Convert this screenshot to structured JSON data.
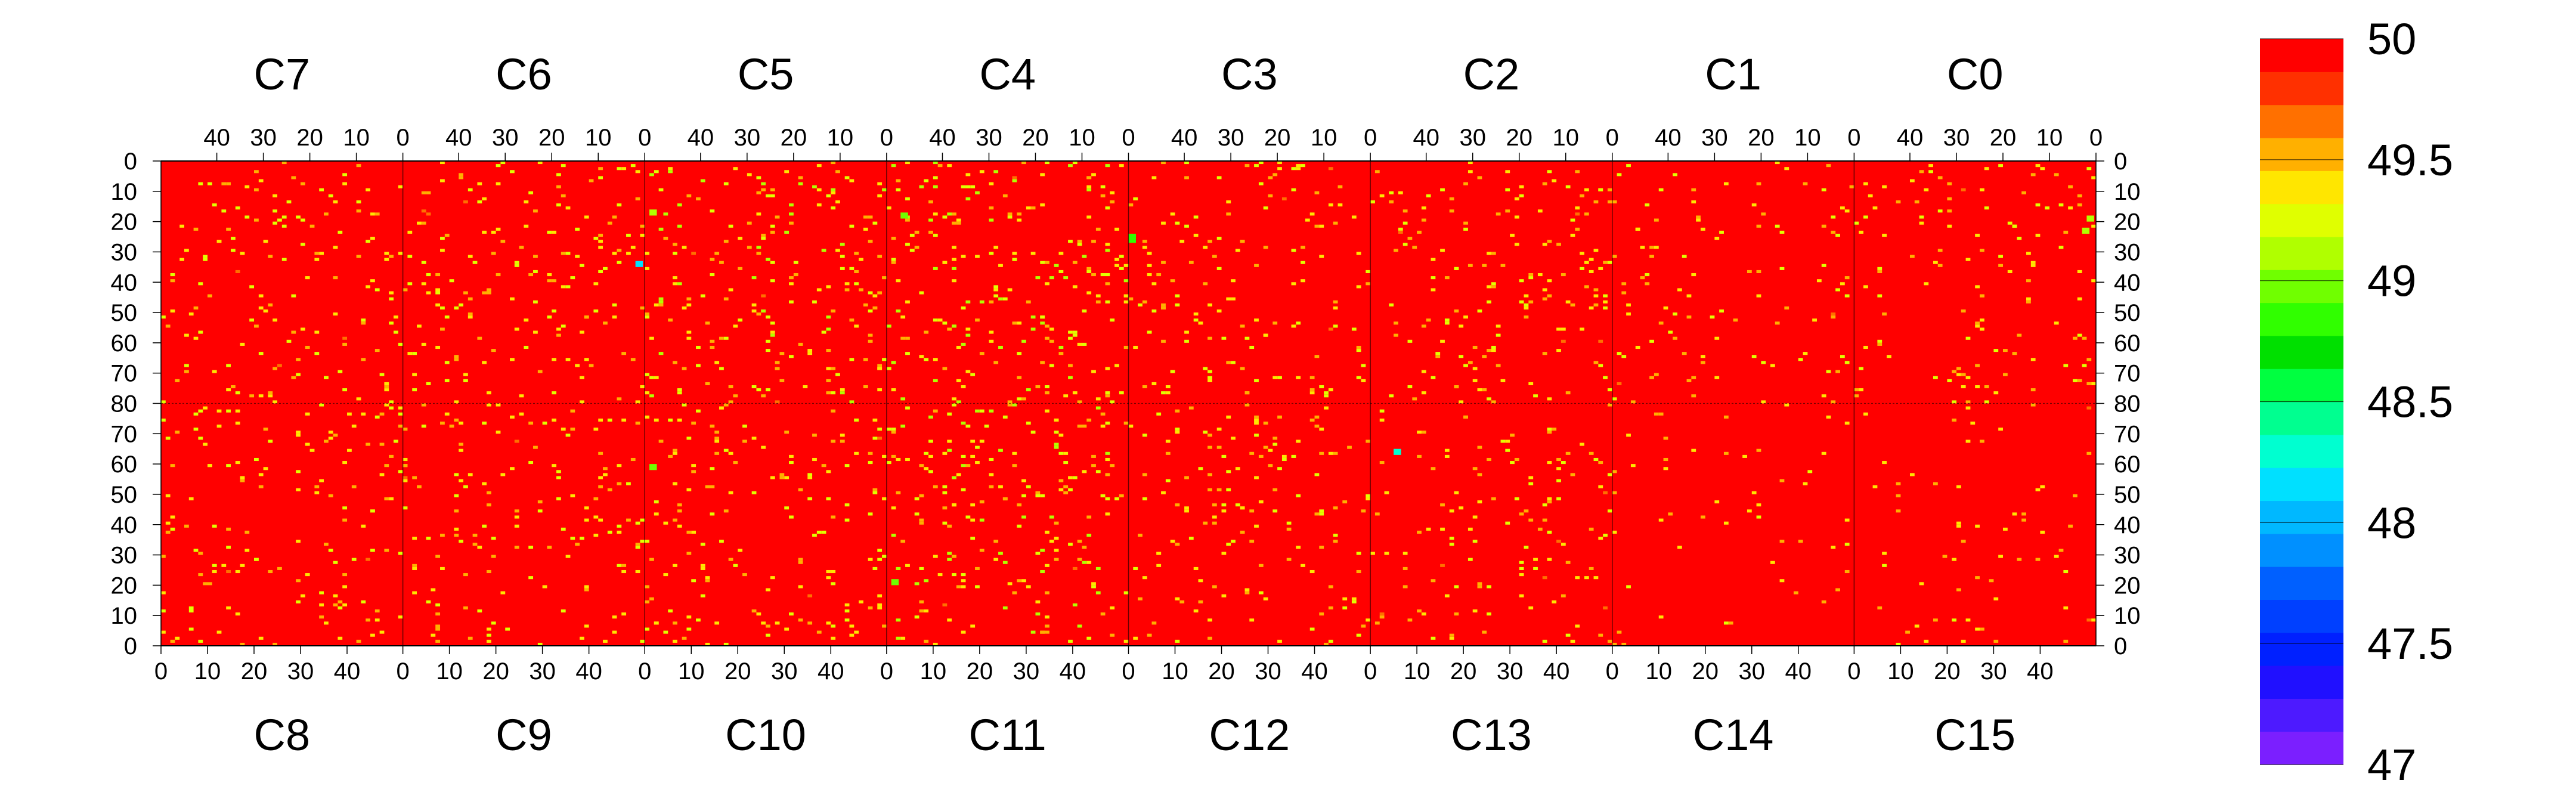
{
  "chart_data": {
    "type": "heatmap",
    "title": "",
    "xlabel": "",
    "ylabel": "",
    "layout": {
      "top_row_chips": [
        "C7",
        "C6",
        "C5",
        "C4",
        "C3",
        "C2",
        "C1",
        "C0"
      ],
      "bottom_row_chips": [
        "C8",
        "C9",
        "C10",
        "C11",
        "C12",
        "C13",
        "C14",
        "C15"
      ],
      "columns_per_chip": 52,
      "rows_per_half": 80,
      "top_column_axis": "descending",
      "top_row_axis": "descending",
      "bottom_row_axis": "descending"
    },
    "column_ticks_top": [
      "40",
      "30",
      "20",
      "10",
      "0"
    ],
    "column_tick_values_top": [
      40,
      30,
      20,
      10,
      0
    ],
    "column_ticks_bottom": [
      "0",
      "10",
      "20",
      "30",
      "40"
    ],
    "column_tick_values_bottom": [
      0,
      10,
      20,
      30,
      40
    ],
    "row_ticks_top": [
      "0",
      "10",
      "20",
      "30",
      "40",
      "50",
      "60",
      "70",
      "80"
    ],
    "row_tick_values_top": [
      0,
      10,
      20,
      30,
      40,
      50,
      60,
      70,
      80
    ],
    "row_ticks_bottom": [
      "70",
      "60",
      "50",
      "40",
      "30",
      "20",
      "10",
      "0"
    ],
    "row_tick_values_bottom": [
      70,
      60,
      50,
      40,
      30,
      20,
      10,
      0
    ],
    "zlim": [
      47,
      50
    ],
    "background_value": 50,
    "colorbar": {
      "levels": 20,
      "tick_labels": [
        "50",
        "49.5",
        "49",
        "48.5",
        "48",
        "47.5",
        "47"
      ],
      "tick_values": [
        50,
        49.5,
        49,
        48.5,
        48,
        47.5,
        47
      ],
      "colors": [
        "#7b1fff",
        "#4d1aff",
        "#2010ff",
        "#0020ff",
        "#0040ff",
        "#0060ff",
        "#0090ff",
        "#00b8ff",
        "#00e0ff",
        "#00ffd0",
        "#00ff90",
        "#00ff40",
        "#00e000",
        "#30ff00",
        "#70ff00",
        "#b0ff00",
        "#e0ff00",
        "#ffe600",
        "#ffb000",
        "#ff7000",
        "#ff3000",
        "#ff0000"
      ]
    },
    "point_values_note_free": true,
    "outlier_clusters": [
      {
        "chip": "C7",
        "density": 0.035,
        "value_range": [
          49.2,
          49.6
        ]
      },
      {
        "chip": "C6",
        "density": 0.04,
        "value_range": [
          49.2,
          49.6
        ]
      },
      {
        "chip": "C5",
        "density": 0.05,
        "value_range": [
          49.1,
          49.6
        ]
      },
      {
        "chip": "C4",
        "density": 0.055,
        "value_range": [
          49.1,
          49.6
        ]
      },
      {
        "chip": "C3",
        "density": 0.035,
        "value_range": [
          49.2,
          49.6
        ]
      },
      {
        "chip": "C2",
        "density": 0.04,
        "value_range": [
          49.2,
          49.6
        ]
      },
      {
        "chip": "C1",
        "density": 0.025,
        "value_range": [
          49.2,
          49.6
        ]
      },
      {
        "chip": "C0",
        "density": 0.03,
        "value_range": [
          49.2,
          49.6
        ]
      },
      {
        "chip": "C8",
        "density": 0.035,
        "value_range": [
          49.2,
          49.6
        ]
      },
      {
        "chip": "C9",
        "density": 0.035,
        "value_range": [
          49.2,
          49.6
        ]
      },
      {
        "chip": "C10",
        "density": 0.04,
        "value_range": [
          49.2,
          49.6
        ]
      },
      {
        "chip": "C11",
        "density": 0.05,
        "value_range": [
          49.1,
          49.6
        ]
      },
      {
        "chip": "C12",
        "density": 0.035,
        "value_range": [
          49.2,
          49.6
        ]
      },
      {
        "chip": "C13",
        "density": 0.03,
        "value_range": [
          49.2,
          49.6
        ]
      },
      {
        "chip": "C14",
        "density": 0.012,
        "value_range": [
          49.3,
          49.6
        ]
      },
      {
        "chip": "C15",
        "density": 0.015,
        "value_range": [
          49.3,
          49.6
        ]
      }
    ],
    "notable_pixels": [
      {
        "chip": "C6",
        "row": 33,
        "col": 1,
        "value": 48.2
      },
      {
        "chip": "C5",
        "row": 16,
        "col": 50,
        "value": 49.1
      },
      {
        "chip": "C4",
        "row": 17,
        "col": 48,
        "value": 49.0
      },
      {
        "chip": "C3",
        "row": 24,
        "col": 51,
        "value": 48.9
      },
      {
        "chip": "C3",
        "row": 25,
        "col": 51,
        "value": 48.9
      },
      {
        "chip": "C0",
        "row": 18,
        "col": 1,
        "value": 49.1
      },
      {
        "chip": "C0",
        "row": 22,
        "col": 2,
        "value": 49.1
      },
      {
        "chip": "C10",
        "row": 59,
        "col": 1,
        "value": 49.0
      },
      {
        "chip": "C11",
        "row": 21,
        "col": 1,
        "value": 49.0
      },
      {
        "chip": "C13",
        "row": 64,
        "col": 5,
        "value": 48.3
      }
    ]
  }
}
